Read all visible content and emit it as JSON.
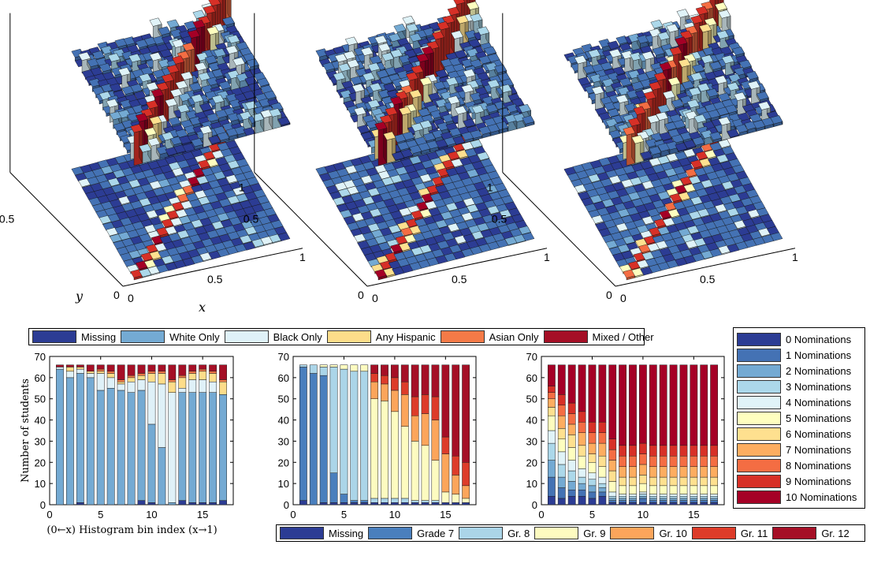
{
  "chart_data": [
    {
      "type": "surface3d",
      "panel": "race",
      "axes": {
        "xlabel": "x",
        "ylabel": "y",
        "x_ticks": [
          "0",
          "0.5",
          "1"
        ],
        "y_ticks": [
          "0",
          "0.5",
          "1"
        ]
      },
      "grid_size": 18,
      "diagonal": "peak values along the main diagonal (x ≈ y)"
    },
    {
      "type": "surface3d",
      "panel": "grade",
      "axes": {
        "x_ticks": [
          "0",
          "0.5",
          "1"
        ],
        "y_ticks": [
          "0",
          "0.5",
          "1"
        ]
      },
      "grid_size": 18
    },
    {
      "type": "surface3d",
      "panel": "nominations",
      "axes": {
        "x_ticks": [
          "0",
          "0.5",
          "1"
        ],
        "y_ticks": [
          "0",
          "0.5",
          "1"
        ]
      },
      "grid_size": 18
    },
    {
      "type": "bar",
      "stacked": true,
      "panel": "race",
      "ylabel": "Number of students",
      "xlabel": "(0←x) Histogram bin index (x→1)",
      "ylim": [
        0,
        70
      ],
      "y_ticks": [
        "0",
        "10",
        "20",
        "30",
        "40",
        "50",
        "60",
        "70"
      ],
      "x_ticks": [
        "0",
        "5",
        "10",
        "15"
      ],
      "categories": [
        1,
        2,
        3,
        4,
        5,
        6,
        7,
        8,
        9,
        10,
        11,
        12,
        13,
        14,
        15,
        16,
        17
      ],
      "series": [
        {
          "name": "Missing",
          "values": [
            0,
            0,
            1,
            0,
            0,
            0,
            0,
            0,
            2,
            1,
            0,
            0,
            2,
            1,
            1,
            1,
            2
          ]
        },
        {
          "name": "White Only",
          "values": [
            64,
            60,
            61,
            60,
            54,
            55,
            54,
            53,
            52,
            37,
            27,
            1,
            51,
            52,
            52,
            52,
            50
          ]
        },
        {
          "name": "Black Only",
          "values": [
            1,
            3,
            2,
            2,
            8,
            5,
            3,
            5,
            5,
            20,
            30,
            52,
            2,
            6,
            6,
            5,
            0
          ]
        },
        {
          "name": "Any Hispanic",
          "values": [
            0,
            2,
            1,
            1,
            1,
            2,
            1,
            2,
            2,
            4,
            5,
            5,
            5,
            3,
            4,
            4,
            6
          ]
        },
        {
          "name": "Asian Only",
          "values": [
            0,
            0,
            0,
            0,
            1,
            1,
            1,
            1,
            1,
            1,
            1,
            1,
            1,
            1,
            1,
            1,
            1
          ]
        },
        {
          "name": "Mixed / Other",
          "values": [
            1,
            1,
            1,
            3,
            2,
            3,
            7,
            5,
            4,
            3,
            3,
            7,
            5,
            3,
            2,
            3,
            7
          ]
        }
      ]
    },
    {
      "type": "bar",
      "stacked": true,
      "panel": "grade",
      "ylim": [
        0,
        70
      ],
      "y_ticks": [
        "0",
        "10",
        "20",
        "30",
        "40",
        "50",
        "60",
        "70"
      ],
      "x_ticks": [
        "0",
        "5",
        "10",
        "15"
      ],
      "categories": [
        1,
        2,
        3,
        4,
        5,
        6,
        7,
        8,
        9,
        10,
        11,
        12,
        13,
        14,
        15,
        16,
        17
      ],
      "series": [
        {
          "name": "Missing",
          "values": [
            2,
            0,
            1,
            1,
            1,
            1,
            1,
            1,
            1,
            1,
            1,
            1,
            1,
            1,
            1,
            1,
            1
          ]
        },
        {
          "name": "Grade 7",
          "values": [
            63,
            62,
            60,
            14,
            4,
            1,
            1,
            0,
            0,
            0,
            0,
            0,
            0,
            0,
            0,
            0,
            0
          ]
        },
        {
          "name": "Gr. 8",
          "values": [
            1,
            4,
            4,
            50,
            59,
            61,
            61,
            2,
            2,
            2,
            2,
            1,
            1,
            1,
            0,
            0,
            0
          ]
        },
        {
          "name": "Gr. 9",
          "values": [
            0,
            0,
            1,
            1,
            2,
            3,
            3,
            47,
            46,
            41,
            34,
            28,
            26,
            19,
            5,
            4,
            2
          ]
        },
        {
          "name": "Gr. 10",
          "values": [
            0,
            0,
            0,
            0,
            0,
            0,
            0,
            8,
            8,
            10,
            15,
            12,
            15,
            19,
            18,
            9,
            6
          ]
        },
        {
          "name": "Gr. 11",
          "values": [
            0,
            0,
            0,
            0,
            0,
            0,
            0,
            4,
            4,
            6,
            6,
            9,
            9,
            11,
            8,
            9,
            11
          ]
        },
        {
          "name": "Gr. 12",
          "values": [
            0,
            0,
            0,
            0,
            0,
            0,
            0,
            4,
            5,
            6,
            8,
            15,
            14,
            15,
            34,
            43,
            46
          ]
        }
      ]
    },
    {
      "type": "bar",
      "stacked": true,
      "panel": "nominations",
      "ylim": [
        0,
        70
      ],
      "y_ticks": [
        "0",
        "10",
        "20",
        "30",
        "40",
        "50",
        "60",
        "70"
      ],
      "x_ticks": [
        "0",
        "5",
        "10",
        "15"
      ],
      "categories": [
        1,
        2,
        3,
        4,
        5,
        6,
        7,
        8,
        9,
        10,
        11,
        12,
        13,
        14,
        15,
        16,
        17
      ],
      "series": [
        {
          "name": "0 Nominations",
          "values": [
            4,
            3,
            4,
            4,
            3,
            4,
            1,
            1,
            1,
            1,
            1,
            1,
            1,
            1,
            1,
            1,
            1
          ]
        },
        {
          "name": "1 Nominations",
          "values": [
            9,
            5,
            3,
            3,
            3,
            2,
            1,
            1,
            1,
            2,
            1,
            1,
            1,
            1,
            1,
            1,
            1
          ]
        },
        {
          "name": "2 Nominations",
          "values": [
            8,
            5,
            4,
            3,
            3,
            2,
            1,
            1,
            1,
            1,
            1,
            1,
            1,
            1,
            1,
            1,
            1
          ]
        },
        {
          "name": "3 Nominations",
          "values": [
            8,
            6,
            5,
            3,
            3,
            2,
            1,
            1,
            1,
            1,
            1,
            1,
            1,
            1,
            1,
            1,
            1
          ]
        },
        {
          "name": "4 Nominations",
          "values": [
            6,
            6,
            5,
            4,
            3,
            3,
            2,
            1,
            1,
            1,
            1,
            1,
            1,
            1,
            1,
            1,
            1
          ]
        },
        {
          "name": "5 Nominations",
          "values": [
            7,
            6,
            6,
            6,
            5,
            5,
            5,
            4,
            4,
            4,
            4,
            4,
            4,
            4,
            4,
            4,
            4
          ]
        },
        {
          "name": "6 Nominations",
          "values": [
            4,
            5,
            6,
            5,
            4,
            5,
            5,
            4,
            4,
            4,
            4,
            4,
            4,
            4,
            4,
            4,
            4
          ]
        },
        {
          "name": "7 Nominations",
          "values": [
            4,
            6,
            5,
            6,
            5,
            6,
            5,
            5,
            5,
            5,
            5,
            5,
            5,
            5,
            5,
            5,
            5
          ]
        },
        {
          "name": "8 Nominations",
          "values": [
            3,
            5,
            5,
            5,
            5,
            5,
            5,
            5,
            5,
            5,
            5,
            5,
            5,
            5,
            5,
            5,
            5
          ]
        },
        {
          "name": "9 Nominations",
          "values": [
            3,
            5,
            5,
            5,
            5,
            5,
            5,
            5,
            5,
            5,
            5,
            5,
            5,
            5,
            5,
            5,
            5
          ]
        },
        {
          "name": "10 Nominations",
          "values": [
            10,
            14,
            18,
            22,
            27,
            27,
            35,
            38,
            38,
            37,
            38,
            38,
            38,
            38,
            38,
            38,
            38
          ]
        }
      ]
    }
  ],
  "legends": {
    "race": [
      {
        "label": "Missing",
        "color": "#2c3c94"
      },
      {
        "label": "White Only",
        "color": "#74aad3"
      },
      {
        "label": "Black Only",
        "color": "#dff1f8"
      },
      {
        "label": "Any Hispanic",
        "color": "#fddd8a"
      },
      {
        "label": "Asian Only",
        "color": "#f57a47"
      },
      {
        "label": "Mixed / Other",
        "color": "#a50f26"
      }
    ],
    "grade": [
      {
        "label": "Missing",
        "color": "#2c3c94"
      },
      {
        "label": "Grade 7",
        "color": "#4a7fbd"
      },
      {
        "label": "Gr. 8",
        "color": "#abd5e8"
      },
      {
        "label": "Gr. 9",
        "color": "#fdfbc0"
      },
      {
        "label": "Gr. 10",
        "color": "#fca55b"
      },
      {
        "label": "Gr. 11",
        "color": "#dd3c2a"
      },
      {
        "label": "Gr. 12",
        "color": "#a50f26"
      }
    ],
    "nominations": [
      {
        "label": "0 Nominations",
        "color": "#2c3c94"
      },
      {
        "label": "1 Nominations",
        "color": "#4472b4"
      },
      {
        "label": "2 Nominations",
        "color": "#74aad3"
      },
      {
        "label": "3 Nominations",
        "color": "#acd8ea"
      },
      {
        "label": "4 Nominations",
        "color": "#e0f3f8"
      },
      {
        "label": "5 Nominations",
        "color": "#fefebf"
      },
      {
        "label": "6 Nominations",
        "color": "#fee08f"
      },
      {
        "label": "7 Nominations",
        "color": "#fdad60"
      },
      {
        "label": "8 Nominations",
        "color": "#f46d43"
      },
      {
        "label": "9 Nominations",
        "color": "#d73027"
      },
      {
        "label": "10 Nominations",
        "color": "#a50026"
      }
    ]
  }
}
